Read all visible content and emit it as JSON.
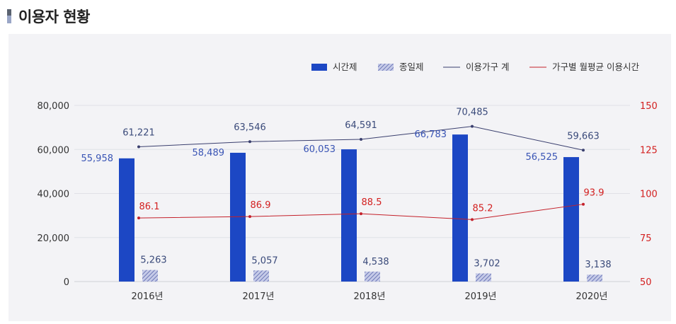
{
  "page": {
    "title": "이용자 현황"
  },
  "colors": {
    "bar_parttime": "#1c47c4",
    "bar_fullday": "#8a94cc",
    "line_total": "#3a3f6e",
    "line_avg": "#c4202a",
    "right_axis": "#d32020"
  },
  "legend": [
    {
      "key": "parttime",
      "label": "시간제"
    },
    {
      "key": "fullday",
      "label": "종일제"
    },
    {
      "key": "total",
      "label": "이용가구 계"
    },
    {
      "key": "avg",
      "label": "가구별 월평균 이용시간"
    }
  ],
  "chart_data": {
    "type": "bar",
    "title": "이용자 현황",
    "categories": [
      "2016년",
      "2017년",
      "2018년",
      "2019년",
      "2020년"
    ],
    "series": [
      {
        "name": "시간제",
        "type": "bar",
        "axis": "left",
        "values": [
          55958,
          58489,
          60053,
          66783,
          56525
        ],
        "labels": [
          "55,958",
          "58,489",
          "60,053",
          "66,783",
          "56,525"
        ]
      },
      {
        "name": "종일제",
        "type": "bar",
        "axis": "left",
        "values": [
          5263,
          5057,
          4538,
          3702,
          3138
        ],
        "labels": [
          "5,263",
          "5,057",
          "4,538",
          "3,702",
          "3,138"
        ]
      },
      {
        "name": "이용가구 계",
        "type": "line",
        "axis": "left",
        "values": [
          61221,
          63546,
          64591,
          70485,
          59663
        ],
        "labels": [
          "61,221",
          "63,546",
          "64,591",
          "70,485",
          "59,663"
        ]
      },
      {
        "name": "가구별 월평균 이용시간",
        "type": "line",
        "axis": "right",
        "values": [
          86.1,
          86.9,
          88.5,
          85.2,
          93.9
        ],
        "labels": [
          "86.1",
          "86.9",
          "88.5",
          "85.2",
          "93.9"
        ]
      }
    ],
    "y_left": {
      "range": [
        0,
        80000
      ],
      "ticks": [
        "0",
        "20,000",
        "40,000",
        "60,000",
        "80,000"
      ],
      "tick_values": [
        0,
        20000,
        40000,
        60000,
        80000
      ]
    },
    "y_right": {
      "range": [
        50,
        150
      ],
      "ticks": [
        "50",
        "75",
        "100",
        "125",
        "150"
      ],
      "tick_values": [
        50,
        75,
        100,
        125,
        150
      ]
    },
    "grid": true,
    "legend_position": "top-right"
  }
}
